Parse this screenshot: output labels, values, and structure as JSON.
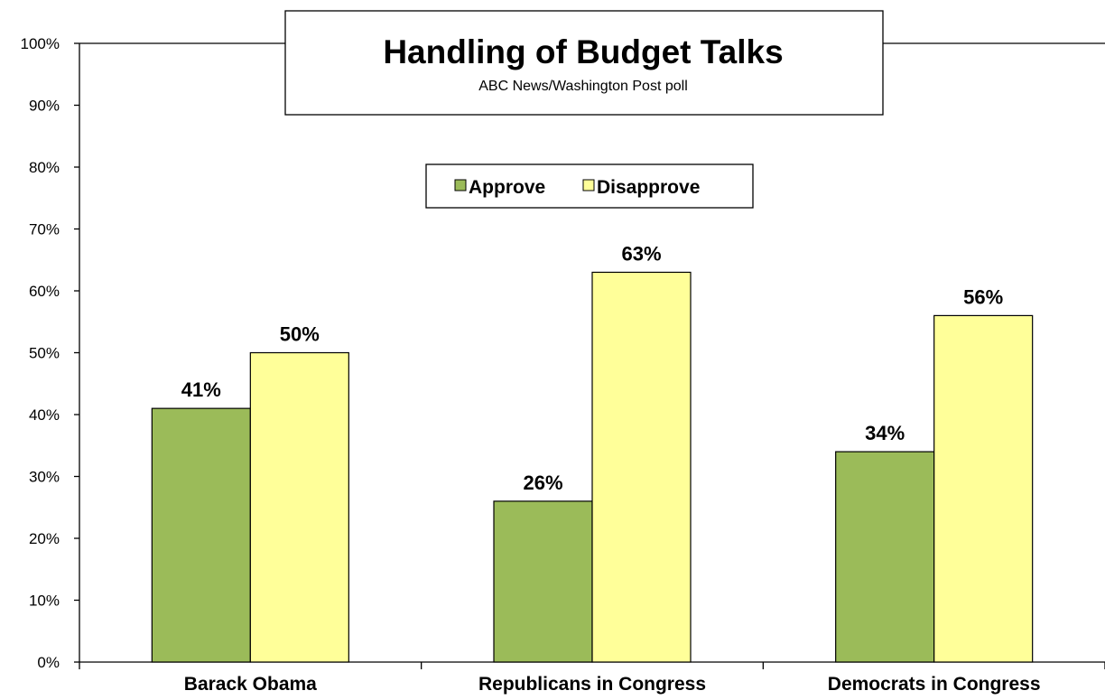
{
  "chart_data": {
    "type": "bar",
    "title": "Handling of Budget Talks",
    "subtitle": "ABC News/Washington  Post poll",
    "categories": [
      "Barack Obama",
      "Republicans in Congress",
      "Democrats in Congress"
    ],
    "series": [
      {
        "name": "Approve",
        "values": [
          41,
          26,
          34
        ],
        "labels": [
          "41%",
          "26%",
          "34%"
        ],
        "color": "#9bbb59"
      },
      {
        "name": "Disapprove",
        "values": [
          50,
          63,
          56
        ],
        "labels": [
          "50%",
          "63%",
          "56%"
        ],
        "color": "#ffff99"
      }
    ],
    "yticks": [
      "0%",
      "10%",
      "20%",
      "30%",
      "40%",
      "50%",
      "60%",
      "70%",
      "80%",
      "90%",
      "100%"
    ],
    "ylim": [
      0,
      100
    ],
    "grid": false,
    "legend_position": "top-center"
  }
}
